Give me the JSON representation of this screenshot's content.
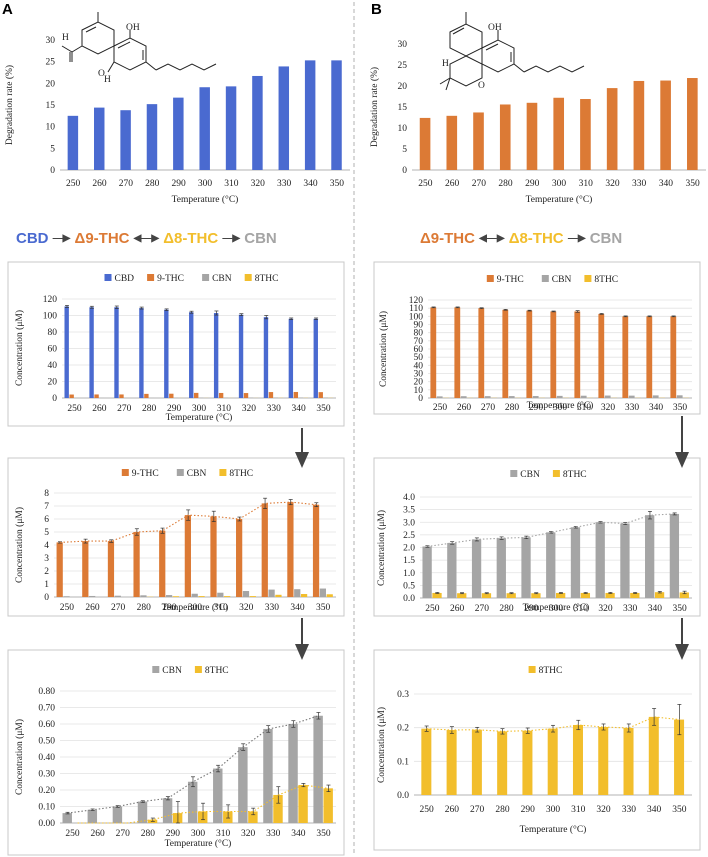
{
  "panels": {
    "A": "A",
    "B": "B"
  },
  "colors": {
    "cbd": "#4a6ad0",
    "thc9": "#dc7a35",
    "cbn": "#a5a5a5",
    "thc8": "#f2be2c",
    "trend": "#888888"
  },
  "reactions": {
    "A": [
      {
        "label": "CBD",
        "color": "#4a6ad0"
      },
      {
        "arrow": "—▶"
      },
      {
        "label": "Δ9-THC",
        "color": "#dc7a35"
      },
      {
        "arrow": "◀—▶"
      },
      {
        "label": "Δ8-THC",
        "color": "#f2be2c"
      },
      {
        "arrow": "—▶"
      },
      {
        "label": "CBN",
        "color": "#a5a5a5"
      }
    ],
    "B": [
      {
        "label": "Δ9-THC",
        "color": "#dc7a35"
      },
      {
        "arrow": "◀—▶"
      },
      {
        "label": "Δ8-THC",
        "color": "#f2be2c"
      },
      {
        "arrow": "—▶"
      },
      {
        "label": "CBN",
        "color": "#a5a5a5"
      }
    ]
  },
  "molecules": {
    "A": {
      "atoms": [
        "OH",
        "H",
        "H",
        "O"
      ]
    },
    "B": {
      "atoms": [
        "OH",
        "H",
        "O"
      ]
    }
  },
  "chart_data": [
    {
      "id": "A-top",
      "type": "bar",
      "title": "",
      "categories": [
        "250",
        "260",
        "270",
        "280",
        "290",
        "300",
        "310",
        "320",
        "330",
        "340",
        "350"
      ],
      "series": [
        {
          "name": "",
          "color": "#4a6ad0",
          "values": [
            12.5,
            14.4,
            13.8,
            15.2,
            16.7,
            19.1,
            19.3,
            21.7,
            23.9,
            25.3,
            25.3
          ]
        }
      ],
      "xlabel": "Temperature (°C)",
      "ylabel": "Degradation rate (%)",
      "ylim": [
        0,
        30
      ],
      "yticks": [
        0,
        5,
        10,
        15,
        20,
        25,
        30
      ],
      "tick_decimals": 0,
      "grid": false,
      "legend": "none"
    },
    {
      "id": "B-top",
      "type": "bar",
      "title": "",
      "categories": [
        "250",
        "260",
        "270",
        "280",
        "290",
        "300",
        "310",
        "320",
        "330",
        "340",
        "350"
      ],
      "series": [
        {
          "name": "",
          "color": "#dc7a35",
          "values": [
            12.4,
            12.9,
            13.7,
            15.6,
            16.0,
            17.2,
            16.9,
            19.5,
            21.2,
            21.3,
            21.9
          ]
        }
      ],
      "xlabel": "Temperature (°C)",
      "ylabel": "Degradation rate (%)",
      "ylim": [
        0,
        30
      ],
      "yticks": [
        0,
        5,
        10,
        15,
        20,
        25,
        30
      ],
      "tick_decimals": 0,
      "grid": false,
      "legend": "none"
    },
    {
      "id": "A-1",
      "type": "bar",
      "title": "",
      "categories": [
        "250",
        "260",
        "270",
        "280",
        "290",
        "300",
        "310",
        "320",
        "330",
        "340",
        "350"
      ],
      "series": [
        {
          "name": "CBD",
          "color": "#4a6ad0",
          "values": [
            111,
            110,
            110,
            109,
            107,
            104,
            103,
            101,
            98,
            96,
            96
          ],
          "errors": [
            1.2,
            1.2,
            1.5,
            1.2,
            1.0,
            1.2,
            2.5,
            1.2,
            2.0,
            1.0,
            1.0
          ]
        },
        {
          "name": "9-THC",
          "color": "#dc7a35",
          "values": [
            4.2,
            4.3,
            4.3,
            5.0,
            5.2,
            6.2,
            6.1,
            6.0,
            7.2,
            7.3,
            7.1
          ],
          "errors": []
        },
        {
          "name": "CBN",
          "color": "#a5a5a5",
          "values": [
            0.1,
            0.1,
            0.1,
            0.1,
            0.2,
            0.3,
            0.4,
            0.5,
            0.6,
            0.6,
            0.6
          ],
          "errors": []
        },
        {
          "name": "8THC",
          "color": "#f2be2c",
          "values": [
            0.0,
            0.0,
            0.0,
            0.0,
            0.1,
            0.1,
            0.1,
            0.1,
            0.2,
            0.2,
            0.2
          ],
          "errors": []
        }
      ],
      "xlabel": "Temperature (°C)",
      "ylabel": "Concentration (μM)",
      "ylim": [
        0,
        120
      ],
      "yticks": [
        0,
        20,
        40,
        60,
        80,
        100,
        120
      ],
      "tick_decimals": 0,
      "grid": true,
      "legend": "top"
    },
    {
      "id": "A-2",
      "type": "bar",
      "title": "",
      "categories": [
        "250",
        "260",
        "270",
        "280",
        "290",
        "300",
        "310",
        "320",
        "330",
        "340",
        "350"
      ],
      "series": [
        {
          "name": "9-THC",
          "color": "#dc7a35",
          "values": [
            4.2,
            4.3,
            4.3,
            5.0,
            5.1,
            6.3,
            6.2,
            6.0,
            7.2,
            7.3,
            7.1
          ],
          "errors": [
            0.05,
            0.15,
            0.1,
            0.25,
            0.2,
            0.4,
            0.4,
            0.15,
            0.4,
            0.2,
            0.15
          ]
        },
        {
          "name": "CBN",
          "color": "#a5a5a5",
          "values": [
            0.06,
            0.08,
            0.1,
            0.13,
            0.15,
            0.25,
            0.33,
            0.46,
            0.57,
            0.6,
            0.65
          ],
          "errors": []
        },
        {
          "name": "8THC",
          "color": "#f2be2c",
          "values": [
            0.0,
            0.0,
            0.0,
            0.02,
            0.06,
            0.07,
            0.07,
            0.07,
            0.17,
            0.23,
            0.21
          ],
          "errors": []
        }
      ],
      "trend": {
        "series": "9-THC",
        "color": "#dc7a35"
      },
      "xlabel": "Temperature (°C)",
      "ylabel": "Concentration (μM)",
      "ylim": [
        0,
        8
      ],
      "yticks": [
        0,
        1,
        2,
        3,
        4,
        5,
        6,
        7,
        8
      ],
      "tick_decimals": 0,
      "grid": true,
      "legend": "top"
    },
    {
      "id": "A-3",
      "type": "bar",
      "title": "",
      "categories": [
        "250",
        "260",
        "270",
        "280",
        "290",
        "300",
        "310",
        "320",
        "330",
        "340",
        "350"
      ],
      "series": [
        {
          "name": "CBN",
          "color": "#a5a5a5",
          "values": [
            0.06,
            0.08,
            0.1,
            0.13,
            0.15,
            0.25,
            0.33,
            0.46,
            0.57,
            0.6,
            0.65
          ],
          "errors": [
            0.005,
            0.005,
            0.005,
            0.005,
            0.01,
            0.03,
            0.02,
            0.02,
            0.02,
            0.02,
            0.02
          ]
        },
        {
          "name": "8THC",
          "color": "#f2be2c",
          "values": [
            0.0,
            0.0,
            0.0,
            0.02,
            0.06,
            0.07,
            0.07,
            0.07,
            0.17,
            0.23,
            0.21
          ],
          "errors": [
            0,
            0,
            0,
            0.01,
            0.07,
            0.05,
            0.04,
            0.02,
            0.05,
            0.01,
            0.02
          ]
        }
      ],
      "trend": {
        "series": [
          "CBN",
          "8THC"
        ]
      },
      "xlabel": "Temperature (°C)",
      "ylabel": "Concentration (μM)",
      "ylim": [
        0,
        0.8
      ],
      "yticks": [
        0,
        0.1,
        0.2,
        0.3,
        0.4,
        0.5,
        0.6,
        0.7,
        0.8
      ],
      "tick_decimals": 2,
      "grid": true,
      "legend": "top"
    },
    {
      "id": "B-1",
      "type": "bar",
      "title": "",
      "categories": [
        "250",
        "260",
        "270",
        "280",
        "290",
        "300",
        "310",
        "320",
        "330",
        "340",
        "350"
      ],
      "series": [
        {
          "name": "9-THC",
          "color": "#dc7a35",
          "values": [
            111,
            111,
            110,
            108,
            107,
            106,
            106,
            103,
            100,
            100,
            100
          ],
          "errors": [
            0.5,
            0.5,
            0.5,
            0.5,
            0.5,
            0.5,
            1.0,
            0.5,
            0.5,
            0.5,
            0.5
          ]
        },
        {
          "name": "CBN",
          "color": "#a5a5a5",
          "values": [
            2.0,
            2.2,
            2.3,
            2.35,
            2.4,
            2.6,
            2.8,
            3.0,
            2.9,
            3.2,
            3.3
          ],
          "errors": []
        },
        {
          "name": "8THC",
          "color": "#f2be2c",
          "values": [
            0.2,
            0.2,
            0.2,
            0.2,
            0.2,
            0.2,
            0.2,
            0.2,
            0.2,
            0.25,
            0.2
          ],
          "errors": []
        }
      ],
      "xlabel": "Temperature (°C)",
      "ylabel": "Concentration (μM)",
      "ylim": [
        0,
        120
      ],
      "yticks": [
        0,
        10,
        20,
        30,
        40,
        50,
        60,
        70,
        80,
        90,
        100,
        110,
        120
      ],
      "tick_decimals": 0,
      "grid": true,
      "legend": "top"
    },
    {
      "id": "B-2",
      "type": "bar",
      "title": "",
      "categories": [
        "250",
        "260",
        "270",
        "280",
        "290",
        "300",
        "310",
        "320",
        "330",
        "340",
        "350"
      ],
      "series": [
        {
          "name": "CBN",
          "color": "#a5a5a5",
          "values": [
            2.04,
            2.18,
            2.32,
            2.37,
            2.4,
            2.6,
            2.8,
            3.0,
            2.95,
            3.28,
            3.33
          ],
          "errors": [
            0.03,
            0.05,
            0.06,
            0.05,
            0.05,
            0.03,
            0.03,
            0.03,
            0.04,
            0.15,
            0.04
          ]
        },
        {
          "name": "8THC",
          "color": "#f2be2c",
          "values": [
            0.2,
            0.19,
            0.19,
            0.19,
            0.19,
            0.2,
            0.2,
            0.2,
            0.2,
            0.23,
            0.22
          ],
          "errors": [
            0.02,
            0.02,
            0.02,
            0.02,
            0.02,
            0.02,
            0.02,
            0.02,
            0.02,
            0.03,
            0.05
          ]
        }
      ],
      "trend": {
        "series": "CBN",
        "color": "#a5a5a5"
      },
      "xlabel": "Temperature (°C)",
      "ylabel": "Concentration (μM)",
      "ylim": [
        0,
        4
      ],
      "yticks": [
        0,
        0.5,
        1,
        1.5,
        2,
        2.5,
        3,
        3.5,
        4
      ],
      "tick_decimals": 1,
      "grid": true,
      "legend": "top"
    },
    {
      "id": "B-3",
      "type": "bar",
      "title": "",
      "categories": [
        "250",
        "260",
        "270",
        "280",
        "290",
        "300",
        "310",
        "320",
        "330",
        "340",
        "350"
      ],
      "series": [
        {
          "name": "8THC",
          "color": "#f2be2c",
          "values": [
            0.197,
            0.193,
            0.194,
            0.189,
            0.191,
            0.197,
            0.208,
            0.202,
            0.199,
            0.232,
            0.224
          ],
          "errors": [
            0.008,
            0.01,
            0.007,
            0.008,
            0.008,
            0.01,
            0.014,
            0.009,
            0.012,
            0.025,
            0.045
          ]
        }
      ],
      "trend": {
        "series": "8THC",
        "color": "#f2be2c"
      },
      "xlabel": "Temperature (°C)",
      "ylabel": "Concentration (μM)",
      "ylim": [
        0,
        0.3
      ],
      "yticks": [
        0,
        0.1,
        0.2,
        0.3
      ],
      "tick_decimals": 1,
      "grid": true,
      "legend": "top"
    }
  ]
}
